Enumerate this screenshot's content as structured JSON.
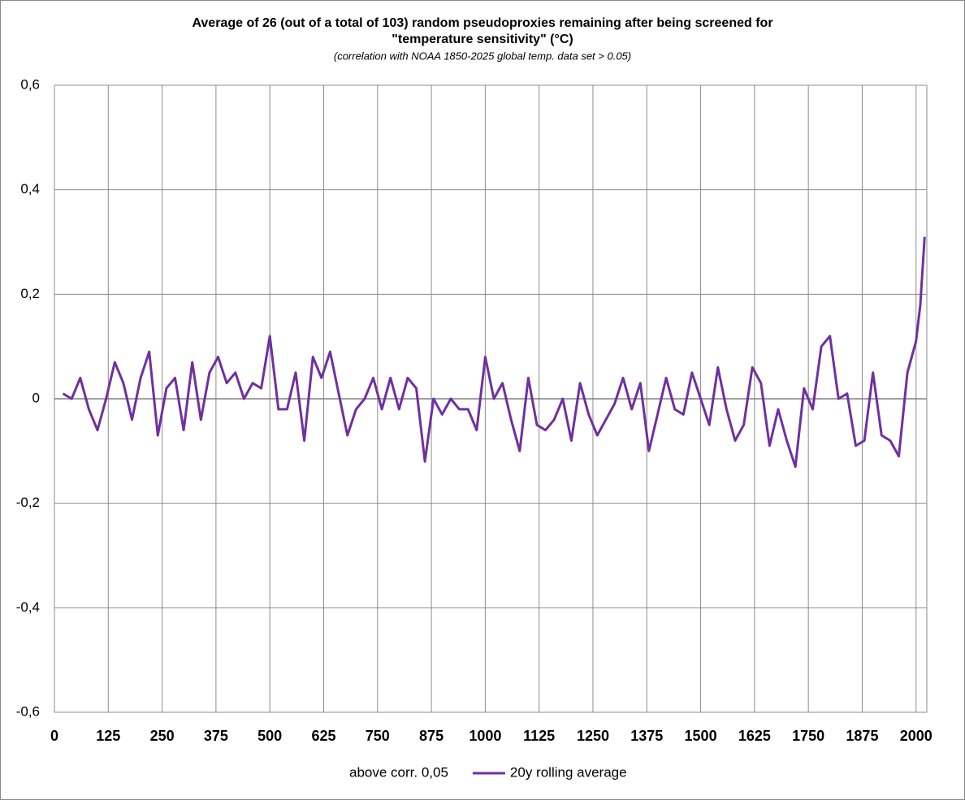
{
  "chart_data": {
    "type": "line",
    "title": [
      "Average of 26 (out of a total of 103) random pseudoproxies remaining after being screened for",
      "\"temperature sensitivity\"  (°C)"
    ],
    "subtitle": "(correlation with NOAA 1850-2025 global  temp. data set > 0.05)",
    "x": [
      20,
      40,
      60,
      80,
      100,
      120,
      140,
      160,
      180,
      200,
      220,
      240,
      260,
      280,
      300,
      320,
      340,
      360,
      380,
      400,
      420,
      440,
      460,
      480,
      500,
      520,
      540,
      560,
      580,
      600,
      620,
      640,
      660,
      680,
      700,
      720,
      740,
      760,
      780,
      800,
      820,
      840,
      860,
      880,
      900,
      920,
      940,
      960,
      980,
      1000,
      1020,
      1040,
      1060,
      1080,
      1100,
      1120,
      1140,
      1160,
      1180,
      1200,
      1220,
      1240,
      1260,
      1280,
      1300,
      1320,
      1340,
      1360,
      1380,
      1400,
      1420,
      1440,
      1460,
      1480,
      1500,
      1520,
      1540,
      1560,
      1580,
      1600,
      1620,
      1640,
      1660,
      1680,
      1700,
      1720,
      1740,
      1760,
      1780,
      1800,
      1820,
      1840,
      1860,
      1880,
      1900,
      1920,
      1940,
      1960,
      1980,
      2000,
      2010,
      2020
    ],
    "series": [
      {
        "name": "above corr. 0,05",
        "color": "#ffffff",
        "values": [
          null,
          null,
          null,
          null,
          null,
          null,
          null,
          null,
          null,
          null,
          null,
          null,
          null,
          null,
          null,
          null,
          null,
          null,
          null,
          null,
          null,
          null,
          null,
          null,
          null,
          null,
          null,
          null,
          null,
          null,
          null,
          null,
          null,
          null,
          null,
          null,
          null,
          null,
          null,
          null,
          null,
          null,
          null,
          null,
          null,
          null,
          null,
          null,
          null,
          null,
          null,
          null,
          null,
          null,
          null,
          null,
          null,
          null,
          null,
          null,
          null,
          null,
          null,
          null,
          null,
          null,
          null,
          null,
          null,
          null,
          null,
          null,
          null,
          null,
          null,
          null,
          null,
          null,
          null,
          null,
          null,
          null,
          null,
          null,
          null,
          null,
          null,
          null,
          null,
          null,
          null,
          null,
          null,
          null,
          null,
          null,
          null,
          null,
          null,
          null,
          null,
          null
        ]
      },
      {
        "name": "20y rolling average",
        "color": "#7030a0",
        "values": [
          0.01,
          0.0,
          0.04,
          -0.02,
          -0.06,
          0.0,
          0.07,
          0.03,
          -0.04,
          0.04,
          0.09,
          -0.07,
          0.02,
          0.04,
          -0.06,
          0.07,
          -0.04,
          0.05,
          0.08,
          0.03,
          0.05,
          0.0,
          0.03,
          0.02,
          0.12,
          -0.02,
          -0.02,
          0.05,
          -0.08,
          0.08,
          0.04,
          0.09,
          0.01,
          -0.07,
          -0.02,
          0.0,
          0.04,
          -0.02,
          0.04,
          -0.02,
          0.04,
          0.02,
          -0.12,
          0.0,
          -0.03,
          0.0,
          -0.02,
          -0.02,
          -0.06,
          0.08,
          0.0,
          0.03,
          -0.04,
          -0.1,
          0.04,
          -0.05,
          -0.06,
          -0.04,
          0.0,
          -0.08,
          0.03,
          -0.03,
          -0.07,
          -0.04,
          -0.01,
          0.04,
          -0.02,
          0.03,
          -0.1,
          -0.03,
          0.04,
          -0.02,
          -0.03,
          0.05,
          0.0,
          -0.05,
          0.06,
          -0.02,
          -0.08,
          -0.05,
          0.06,
          0.03,
          -0.09,
          -0.02,
          -0.08,
          -0.13,
          0.02,
          -0.02,
          0.1,
          0.12,
          0.0,
          0.01,
          -0.09,
          -0.08,
          0.05,
          -0.07,
          -0.08,
          -0.11,
          0.05,
          0.11,
          0.18,
          0.31
        ]
      }
    ],
    "xlim": [
      0,
      2025
    ],
    "xticks": [
      0,
      125,
      250,
      375,
      500,
      625,
      750,
      875,
      1000,
      1125,
      1250,
      1375,
      1500,
      1625,
      1750,
      1875,
      2000
    ],
    "ylim": [
      -0.6,
      0.6
    ],
    "yticks": [
      {
        "value": -0.6,
        "label": "-0,6"
      },
      {
        "value": -0.4,
        "label": "-0,4"
      },
      {
        "value": -0.2,
        "label": "-0,2"
      },
      0,
      {
        "value": 0.2,
        "label": "0,2"
      },
      {
        "value": 0.4,
        "label": "0,4"
      },
      {
        "value": 0.6,
        "label": "0,6"
      }
    ],
    "grid": true
  }
}
